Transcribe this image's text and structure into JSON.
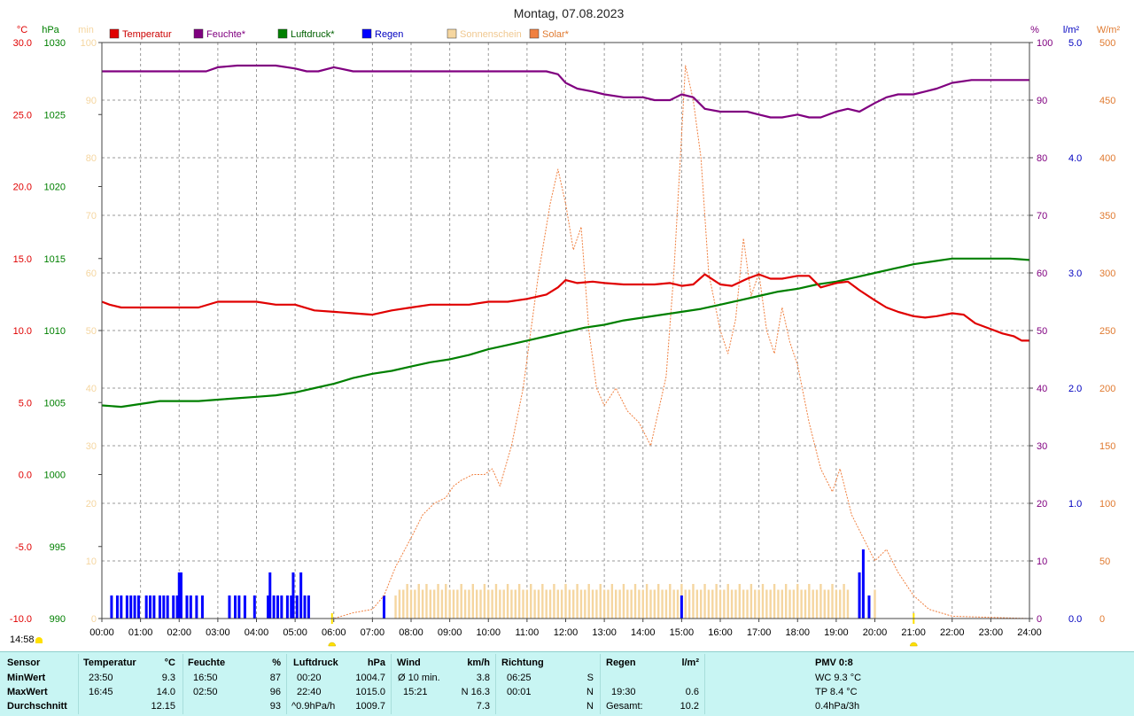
{
  "title": "Montag, 07.08.2023",
  "current_time": "14:58",
  "axes": {
    "temp": {
      "unit": "°C",
      "color": "#e00000",
      "ticks": [
        "30.0",
        "25.0",
        "20.0",
        "15.0",
        "10.0",
        "5.0",
        "0.0",
        "-5.0",
        "-10.0"
      ]
    },
    "pressure": {
      "unit": "hPa",
      "color": "#008000",
      "ticks": [
        "1030",
        "1025",
        "1020",
        "1015",
        "1010",
        "1005",
        "1000",
        "995",
        "990"
      ]
    },
    "sun": {
      "unit": "min",
      "color": "#f5d6a0",
      "ticks": [
        "100",
        "90",
        "80",
        "70",
        "60",
        "50",
        "40",
        "30",
        "20",
        "10",
        "0"
      ]
    },
    "humidity": {
      "unit": "%",
      "color": "#800080",
      "ticks": [
        "100",
        "90",
        "80",
        "70",
        "60",
        "50",
        "40",
        "30",
        "20",
        "10",
        "0"
      ]
    },
    "rain": {
      "unit": "l/m²",
      "color": "#0000c0",
      "ticks": [
        "5.0",
        "4.0",
        "3.0",
        "2.0",
        "1.0",
        "0.0"
      ]
    },
    "solar": {
      "unit": "W/m²",
      "color": "#e07a30",
      "ticks": [
        "500",
        "450",
        "400",
        "350",
        "300",
        "250",
        "200",
        "150",
        "100",
        "50",
        "0"
      ]
    }
  },
  "legend": [
    {
      "label": "Temperatur",
      "color": "#e00000",
      "text_color": "#cc0000"
    },
    {
      "label": "Feuchte*",
      "color": "#800080",
      "text_color": "#800080"
    },
    {
      "label": "Luftdruck*",
      "color": "#008000",
      "text_color": "#006000"
    },
    {
      "label": "Regen",
      "color": "#0000ff",
      "text_color": "#0000c0"
    },
    {
      "label": "Sonnenschein",
      "color": "#f5d6a0",
      "text_color": "#f0c890"
    },
    {
      "label": "Solar*",
      "color": "#f08040",
      "text_color": "#e07a30"
    }
  ],
  "chart_data": {
    "type": "line",
    "x_label": "",
    "x_ticks": [
      "00:00",
      "01:00",
      "02:00",
      "03:00",
      "04:00",
      "05:00",
      "06:00",
      "07:00",
      "08:00",
      "09:00",
      "10:00",
      "11:00",
      "12:00",
      "13:00",
      "14:00",
      "15:00",
      "16:00",
      "17:00",
      "18:00",
      "19:00",
      "20:00",
      "21:00",
      "22:00",
      "23:00",
      "24:00"
    ],
    "x_range": [
      0,
      24
    ],
    "series": [
      {
        "name": "Temperatur",
        "axis": "°C",
        "ylim": [
          -10,
          30
        ],
        "color": "#e00000",
        "x": [
          0,
          0.2,
          0.5,
          1,
          1.5,
          2,
          2.5,
          3,
          3.5,
          4,
          4.5,
          5,
          5.5,
          6,
          6.5,
          7,
          7.5,
          8,
          8.5,
          9,
          9.5,
          10,
          10.5,
          11,
          11.5,
          11.8,
          12,
          12.3,
          12.7,
          13,
          13.5,
          14,
          14.3,
          14.7,
          15,
          15.3,
          15.6,
          16,
          16.3,
          16.7,
          17,
          17.3,
          17.6,
          18,
          18.3,
          18.6,
          19,
          19.3,
          19.6,
          20,
          20.3,
          20.6,
          21,
          21.3,
          21.6,
          22,
          22.3,
          22.6,
          23,
          23.3,
          23.6,
          23.8,
          24
        ],
        "y": [
          12.0,
          11.8,
          11.6,
          11.6,
          11.6,
          11.6,
          11.6,
          12.0,
          12.0,
          12.0,
          11.8,
          11.8,
          11.4,
          11.3,
          11.2,
          11.1,
          11.4,
          11.6,
          11.8,
          11.8,
          11.8,
          12.0,
          12.0,
          12.2,
          12.5,
          13.0,
          13.5,
          13.3,
          13.4,
          13.3,
          13.2,
          13.2,
          13.2,
          13.3,
          13.1,
          13.2,
          13.9,
          13.2,
          13.1,
          13.6,
          13.9,
          13.6,
          13.6,
          13.8,
          13.8,
          13.0,
          13.3,
          13.4,
          12.8,
          12.1,
          11.6,
          11.3,
          11.0,
          10.9,
          11.0,
          11.2,
          11.1,
          10.5,
          10.1,
          9.8,
          9.6,
          9.3,
          9.3
        ]
      },
      {
        "name": "Feuchte*",
        "axis": "%",
        "ylim": [
          0,
          100
        ],
        "color": "#800080",
        "x": [
          0,
          0.5,
          1,
          1.5,
          2,
          2.7,
          3,
          3.5,
          4,
          4.5,
          5,
          5.3,
          5.6,
          6,
          6.5,
          7,
          8,
          9,
          10,
          11,
          11.5,
          11.8,
          12,
          12.3,
          12.7,
          13,
          13.5,
          14,
          14.3,
          14.7,
          15,
          15.3,
          15.6,
          16,
          16.3,
          16.7,
          17,
          17.3,
          17.6,
          18,
          18.3,
          18.6,
          19,
          19.3,
          19.6,
          20,
          20.3,
          20.6,
          21,
          21.3,
          21.6,
          22,
          22.5,
          23,
          23.5,
          24
        ],
        "y": [
          95,
          95,
          95,
          95,
          95,
          95,
          95.7,
          96,
          96,
          96,
          95.5,
          95,
          95,
          95.7,
          95,
          95,
          95,
          95,
          95,
          95,
          95,
          94.5,
          93,
          92,
          91.5,
          91,
          90.5,
          90.5,
          90,
          90,
          91,
          90.5,
          88.5,
          88,
          88,
          88,
          87.5,
          87,
          87,
          87.5,
          87,
          87,
          88,
          88.5,
          88,
          89.5,
          90.5,
          91,
          91,
          91.5,
          92,
          93,
          93.5,
          93.5,
          93.5,
          93.5
        ]
      },
      {
        "name": "Luftdruck*",
        "axis": "hPa",
        "ylim": [
          990,
          1030
        ],
        "color": "#008000",
        "x": [
          0,
          0.5,
          1,
          1.5,
          2,
          2.5,
          3,
          3.5,
          4,
          4.5,
          5,
          5.5,
          6,
          6.5,
          7,
          7.5,
          8,
          8.5,
          9,
          9.5,
          10,
          10.5,
          11,
          11.5,
          12,
          12.5,
          13,
          13.5,
          14,
          14.5,
          15,
          15.5,
          16,
          16.5,
          17,
          17.5,
          18,
          18.5,
          19,
          19.5,
          20,
          20.5,
          21,
          21.5,
          22,
          22.5,
          23,
          23.5,
          24
        ],
        "y": [
          1004.8,
          1004.7,
          1004.9,
          1005.1,
          1005.1,
          1005.1,
          1005.2,
          1005.3,
          1005.4,
          1005.5,
          1005.7,
          1006.0,
          1006.3,
          1006.7,
          1007.0,
          1007.2,
          1007.5,
          1007.8,
          1008.0,
          1008.3,
          1008.7,
          1009.0,
          1009.3,
          1009.6,
          1009.9,
          1010.2,
          1010.4,
          1010.7,
          1010.9,
          1011.1,
          1011.3,
          1011.5,
          1011.8,
          1012.1,
          1012.4,
          1012.7,
          1012.9,
          1013.2,
          1013.4,
          1013.7,
          1014.0,
          1014.3,
          1014.6,
          1014.8,
          1015.0,
          1015.0,
          1015.0,
          1015.0,
          1014.9
        ]
      },
      {
        "name": "Solar*",
        "axis": "W/m²",
        "ylim": [
          0,
          500
        ],
        "color": "#f08040",
        "x": [
          0,
          6.0,
          6.5,
          7.0,
          7.3,
          7.6,
          8.0,
          8.3,
          8.6,
          8.9,
          9.1,
          9.3,
          9.6,
          9.9,
          10.1,
          10.3,
          10.6,
          10.9,
          11.1,
          11.3,
          11.6,
          11.8,
          12.0,
          12.2,
          12.4,
          12.6,
          12.8,
          13.0,
          13.3,
          13.6,
          13.9,
          14.2,
          14.6,
          14.8,
          15.0,
          15.1,
          15.3,
          15.5,
          15.7,
          16.0,
          16.2,
          16.4,
          16.6,
          16.8,
          17.0,
          17.2,
          17.4,
          17.6,
          17.8,
          18.0,
          18.3,
          18.6,
          18.9,
          19.1,
          19.4,
          19.7,
          20.0,
          20.3,
          20.6,
          21.0,
          21.4,
          22.0,
          24.0
        ],
        "y": [
          0,
          0,
          5,
          8,
          20,
          45,
          70,
          90,
          100,
          105,
          115,
          120,
          125,
          125,
          130,
          115,
          150,
          200,
          250,
          300,
          360,
          390,
          360,
          320,
          340,
          250,
          200,
          185,
          200,
          180,
          170,
          150,
          210,
          300,
          420,
          480,
          450,
          400,
          300,
          250,
          230,
          260,
          330,
          280,
          300,
          250,
          230,
          270,
          240,
          220,
          170,
          130,
          110,
          130,
          90,
          70,
          50,
          60,
          40,
          20,
          8,
          2,
          0
        ]
      }
    ],
    "bars": [
      {
        "name": "Regen",
        "axis": "l/m²",
        "ylim": [
          0,
          5
        ],
        "color": "#0000ff",
        "x": [
          0.25,
          0.4,
          0.5,
          0.65,
          0.75,
          0.85,
          0.95,
          1.15,
          1.25,
          1.35,
          1.5,
          1.6,
          1.7,
          1.85,
          1.95,
          2.0,
          2.05,
          2.2,
          2.3,
          2.45,
          2.6,
          3.3,
          3.45,
          3.55,
          3.7,
          3.95,
          4.3,
          4.35,
          4.45,
          4.55,
          4.65,
          4.8,
          4.9,
          4.95,
          5.05,
          5.15,
          5.25,
          5.35,
          7.3,
          15.0,
          19.6,
          19.7,
          19.85
        ],
        "y": [
          0.2,
          0.2,
          0.2,
          0.2,
          0.2,
          0.2,
          0.2,
          0.2,
          0.2,
          0.2,
          0.2,
          0.2,
          0.2,
          0.2,
          0.2,
          0.4,
          0.4,
          0.2,
          0.2,
          0.2,
          0.2,
          0.2,
          0.2,
          0.2,
          0.2,
          0.2,
          0.2,
          0.4,
          0.2,
          0.2,
          0.2,
          0.2,
          0.2,
          0.4,
          0.2,
          0.4,
          0.2,
          0.2,
          0.2,
          0.2,
          0.4,
          0.6,
          0.2
        ]
      },
      {
        "name": "Sonnenschein",
        "axis": "min",
        "ylim": [
          0,
          100
        ],
        "color": "#f5d6a0",
        "x_start": 7.6,
        "x_end": 19.35,
        "step": 0.1,
        "y": [
          4,
          5,
          5,
          6,
          5,
          5,
          6,
          5,
          6,
          5,
          5,
          6,
          5,
          6,
          5,
          5,
          5,
          6,
          5,
          5,
          6,
          5,
          5,
          6,
          5,
          5,
          6,
          5,
          5,
          6,
          5,
          5,
          6,
          5,
          5,
          6,
          5,
          5,
          6,
          5,
          5,
          6,
          5,
          5,
          6,
          5,
          5,
          6,
          5,
          5,
          6,
          5,
          5,
          6,
          5,
          5,
          6,
          5,
          5,
          6,
          5,
          5,
          6,
          5,
          5,
          6,
          5,
          5,
          6,
          5,
          5,
          6,
          5,
          5,
          6,
          5,
          5,
          6,
          5,
          5,
          6,
          5,
          5,
          6,
          5,
          5,
          6,
          5,
          5,
          6,
          5,
          5,
          6,
          5,
          5,
          6,
          5,
          5,
          6,
          5,
          5,
          6,
          5,
          5,
          6,
          5,
          5,
          6,
          5,
          5,
          6,
          5,
          5,
          6,
          5,
          5,
          6,
          5
        ]
      },
      {
        "name": "Sonnenschein",
        "axis": "min",
        "ylim": [
          0,
          100
        ],
        "color": "#f5d6a0",
        "x_single": [
          20.0
        ],
        "y": [
          5
        ]
      }
    ],
    "grid": true
  },
  "stats": {
    "headers": {
      "sensor": "Sensor",
      "temp": "Temperatur",
      "temp_unit": "°C",
      "hum": "Feuchte",
      "hum_unit": "%",
      "press": "Luftdruck",
      "press_unit": "hPa",
      "wind": "Wind",
      "wind_unit": "km/h",
      "dir": "Richtung",
      "rain": "Regen",
      "rain_unit": "l/m²",
      "pmv": "PMV 0:8"
    },
    "rows": [
      "MinWert",
      "MaxWert",
      "Durchschnitt"
    ],
    "temp": [
      [
        "23:50",
        "9.3"
      ],
      [
        "16:45",
        "14.0"
      ],
      [
        "",
        "12.15"
      ]
    ],
    "hum": [
      [
        "16:50",
        "87"
      ],
      [
        "02:50",
        "96"
      ],
      [
        "",
        "93"
      ]
    ],
    "press": [
      [
        "00:20",
        "1004.7"
      ],
      [
        "22:40",
        "1015.0"
      ],
      [
        "^0.9hPa/h",
        "1009.7"
      ]
    ],
    "wind": [
      [
        "Ø 10 min.",
        "3.8"
      ],
      [
        "15:21",
        "N 16.3"
      ],
      [
        "",
        "7.3"
      ]
    ],
    "dir": [
      [
        "06:25",
        "S"
      ],
      [
        "00:01",
        "N"
      ],
      [
        "",
        "N"
      ]
    ],
    "rain": [
      [
        "",
        ""
      ],
      [
        "19:30",
        "0.6"
      ],
      [
        "Gesamt:",
        "10.2"
      ]
    ],
    "pmv": [
      "WC 9.3 °C",
      "TP 8.4 °C",
      "0.4hPa/3h"
    ]
  }
}
